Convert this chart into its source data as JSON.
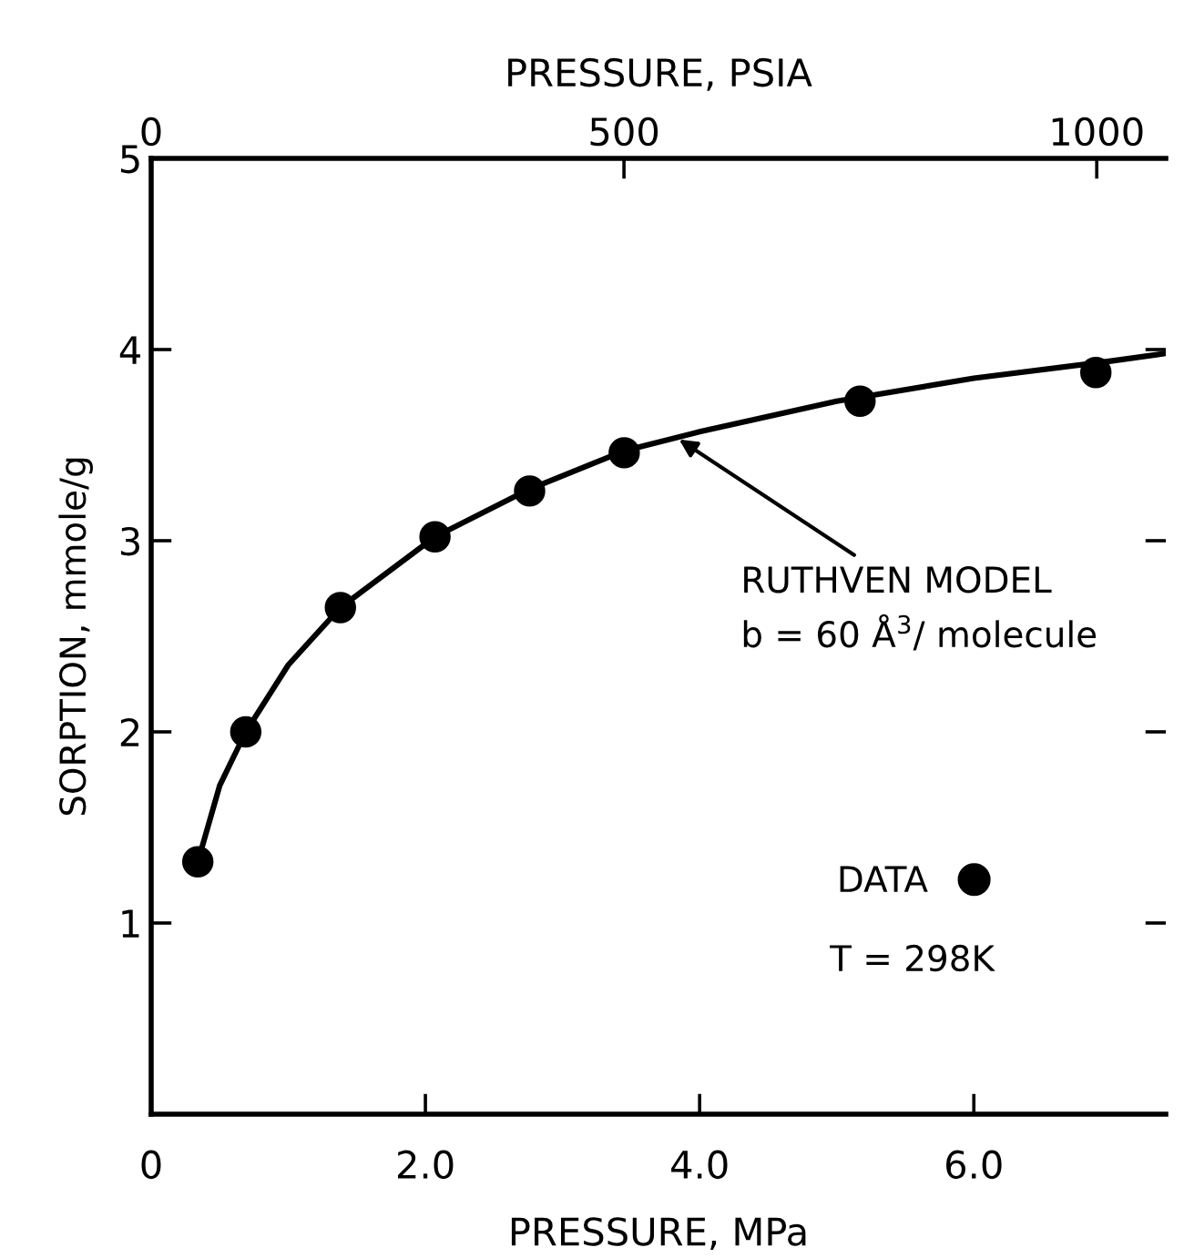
{
  "chart_data": {
    "type": "scatter",
    "xlabel": "PRESSURE, MPa",
    "ylabel": "SORPTION, mmole/g",
    "x2label": "PRESSURE, PSIA",
    "xlim": [
      0,
      7.4
    ],
    "xticks": [
      0,
      {
        "value": 2,
        "label": "2.0"
      },
      {
        "value": 4,
        "label": "4.0"
      },
      {
        "value": 6,
        "label": "6.0"
      }
    ],
    "x2lim": [
      0,
      1073
    ],
    "x2ticks": [
      0,
      500,
      1000
    ],
    "ylim": [
      0,
      5
    ],
    "yticks": [
      1,
      2,
      3,
      4,
      5
    ],
    "series": [
      {
        "name": "DATA",
        "type": "scatter",
        "color": "#000000",
        "marker": "circle",
        "x": [
          0.34,
          0.69,
          1.38,
          2.07,
          2.76,
          3.45,
          5.17,
          6.89
        ],
        "values": [
          1.32,
          2.0,
          2.65,
          3.02,
          3.26,
          3.46,
          3.73,
          3.88
        ]
      },
      {
        "type": "line",
        "color": "#000000",
        "line_style": "solid",
        "x": [
          0.34,
          0.5,
          0.69,
          1.0,
          1.38,
          2.07,
          2.76,
          3.45,
          4.0,
          5.0,
          6.0,
          7.0,
          7.4
        ],
        "values": [
          1.32,
          1.72,
          2.0,
          2.35,
          2.65,
          3.02,
          3.27,
          3.47,
          3.57,
          3.73,
          3.85,
          3.94,
          3.98
        ]
      }
    ],
    "annotations": [
      {
        "text": "RUTHVEN MODEL",
        "x": 3.85,
        "y": 3.53
      },
      "b = 60 Å$^{3}$/ molecule",
      "T = 298K"
    ],
    "legend": "bottom right",
    "grid": false
  }
}
